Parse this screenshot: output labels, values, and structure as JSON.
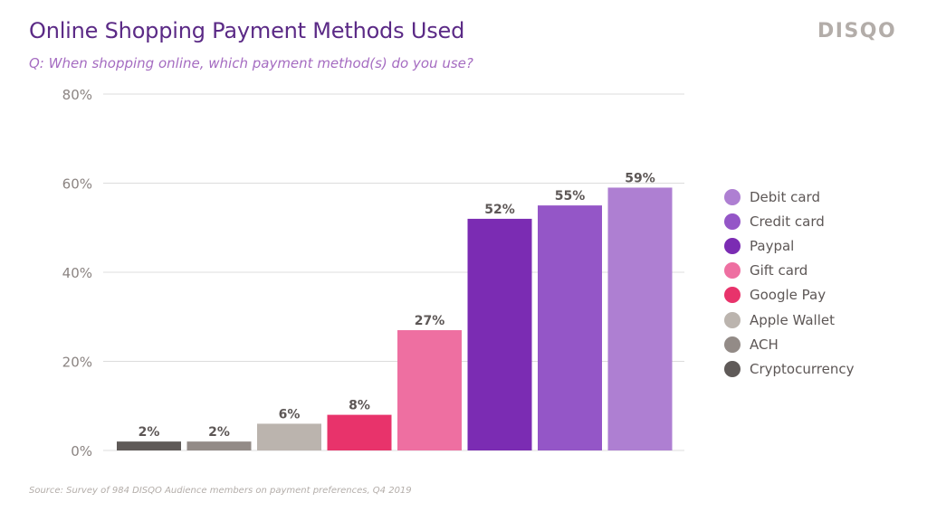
{
  "header": {
    "title": "Online Shopping Payment Methods Used",
    "subtitle": "Q: When shopping online, which payment method(s) do you use?",
    "logo": "DISQO"
  },
  "footer": {
    "source": "Source: Survey of 984 DISQO Audience members on payment preferences, Q4 2019"
  },
  "chart_data": {
    "type": "bar",
    "title": "Online Shopping Payment Methods Used",
    "subtitle": "Q: When shopping online, which payment method(s) do you use?",
    "xlabel": "",
    "ylabel": "",
    "ylim": [
      0,
      80
    ],
    "yticks": [
      0,
      20,
      40,
      60,
      80
    ],
    "ytick_labels": [
      "0%",
      "20%",
      "40%",
      "60%",
      "80%"
    ],
    "grid": true,
    "legend_position": "right",
    "categories": [
      "Cryptocurrency",
      "ACH",
      "Apple Wallet",
      "Google Pay",
      "Gift card",
      "Paypal",
      "Credit card",
      "Debit card"
    ],
    "values": [
      2,
      2,
      6,
      8,
      27,
      52,
      55,
      59
    ],
    "value_labels": [
      "2%",
      "2%",
      "6%",
      "8%",
      "27%",
      "52%",
      "55%",
      "59%"
    ],
    "colors": [
      "#5f5a58",
      "#938b87",
      "#bbb4ae",
      "#e8336b",
      "#ee6fa1",
      "#7b2cb3",
      "#9456c7",
      "#ae7fd2"
    ]
  },
  "legend": {
    "items": [
      {
        "label": "Debit card",
        "color": "#ae7fd2"
      },
      {
        "label": "Credit card",
        "color": "#9456c7"
      },
      {
        "label": "Paypal",
        "color": "#7b2cb3"
      },
      {
        "label": "Gift card",
        "color": "#ee6fa1"
      },
      {
        "label": "Google Pay",
        "color": "#e8336b"
      },
      {
        "label": "Apple Wallet",
        "color": "#bbb4ae"
      },
      {
        "label": "ACH",
        "color": "#938b87"
      },
      {
        "label": "Cryptocurrency",
        "color": "#5f5a58"
      }
    ]
  }
}
